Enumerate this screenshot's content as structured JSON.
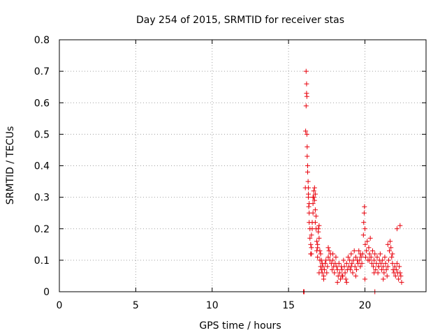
{
  "chart_data": {
    "type": "scatter",
    "title": "Day 254 of 2015, SRMTID for receiver stas",
    "xlabel": "GPS time / hours",
    "ylabel": "SRMTID / TECUs",
    "xlim": [
      0,
      24
    ],
    "ylim": [
      0,
      0.8
    ],
    "xticks": [
      0,
      5,
      10,
      15,
      20
    ],
    "xtick_labels": [
      "0",
      "5",
      "10",
      "15",
      "20"
    ],
    "yticks": [
      0,
      0.1,
      0.2,
      0.3,
      0.4,
      0.5,
      0.6,
      0.7,
      0.8
    ],
    "ytick_labels": [
      "0",
      "0.1",
      "0.2",
      "0.3",
      "0.4",
      "0.5",
      "0.6",
      "0.7",
      "0.8"
    ],
    "grid": true,
    "marker": "+",
    "color": "#e8000b",
    "series": [
      {
        "name": "stas",
        "x": [
          16.0,
          16.02,
          16.1,
          16.12,
          16.15,
          16.15,
          16.18,
          16.18,
          16.2,
          16.2,
          16.22,
          16.22,
          16.25,
          16.25,
          16.28,
          16.3,
          16.3,
          16.32,
          16.35,
          16.35,
          16.4,
          16.4,
          16.45,
          16.45,
          16.5,
          16.5,
          16.55,
          16.55,
          16.6,
          16.6,
          16.65,
          16.65,
          16.7,
          16.7,
          16.75,
          16.75,
          16.8,
          16.8,
          16.85,
          16.85,
          16.9,
          16.9,
          16.95,
          16.95,
          17.0,
          17.0,
          17.05,
          17.05,
          17.1,
          17.1,
          17.15,
          17.15,
          17.2,
          17.2,
          17.25,
          17.3,
          17.35,
          17.4,
          17.45,
          17.5,
          17.55,
          17.6,
          17.65,
          17.7,
          17.75,
          17.8,
          17.85,
          17.9,
          17.95,
          18.0,
          18.05,
          18.1,
          18.15,
          18.2,
          18.25,
          18.3,
          18.35,
          18.4,
          18.45,
          18.5,
          18.55,
          18.6,
          18.65,
          18.7,
          18.75,
          18.8,
          18.85,
          18.9,
          18.95,
          19.0,
          19.05,
          19.1,
          19.15,
          19.2,
          19.25,
          19.3,
          19.35,
          19.4,
          19.45,
          19.5,
          19.55,
          19.6,
          19.65,
          19.7,
          19.75,
          19.8,
          19.85,
          19.9,
          19.92,
          19.95,
          19.97,
          20.0,
          20.02,
          20.05,
          20.1,
          20.15,
          20.2,
          20.25,
          20.3,
          20.35,
          20.4,
          20.45,
          20.5,
          20.55,
          20.6,
          20.65,
          20.7,
          20.75,
          20.8,
          20.85,
          20.9,
          20.95,
          21.0,
          21.05,
          21.1,
          21.15,
          21.2,
          21.25,
          21.3,
          21.35,
          21.4,
          21.45,
          21.5,
          21.55,
          21.6,
          21.65,
          21.7,
          21.75,
          21.8,
          21.85,
          21.9,
          21.95,
          22.0,
          22.05,
          22.1,
          22.15,
          22.2,
          22.25,
          22.3,
          22.35,
          22.4,
          16.3,
          16.35,
          16.5,
          16.6,
          16.75,
          16.9,
          17.0,
          17.3,
          17.6,
          17.9,
          18.2,
          18.5,
          18.8,
          19.1,
          19.4,
          19.7,
          20.0,
          20.3,
          20.6,
          20.9,
          21.2,
          21.5,
          21.8,
          22.1,
          22.3,
          20.65,
          15.98
        ],
        "y": [
          0.0,
          0.0,
          0.33,
          0.51,
          0.59,
          0.7,
          0.66,
          0.63,
          0.62,
          0.5,
          0.46,
          0.43,
          0.4,
          0.38,
          0.35,
          0.33,
          0.3,
          0.27,
          0.25,
          0.22,
          0.2,
          0.17,
          0.15,
          0.12,
          0.18,
          0.14,
          0.22,
          0.2,
          0.25,
          0.28,
          0.32,
          0.3,
          0.33,
          0.29,
          0.31,
          0.26,
          0.24,
          0.2,
          0.16,
          0.13,
          0.15,
          0.11,
          0.19,
          0.2,
          0.21,
          0.17,
          0.13,
          0.1,
          0.12,
          0.08,
          0.1,
          0.07,
          0.09,
          0.06,
          0.08,
          0.05,
          0.07,
          0.09,
          0.1,
          0.06,
          0.08,
          0.11,
          0.13,
          0.1,
          0.12,
          0.09,
          0.07,
          0.1,
          0.08,
          0.06,
          0.09,
          0.11,
          0.08,
          0.07,
          0.05,
          0.09,
          0.06,
          0.04,
          0.08,
          0.07,
          0.05,
          0.1,
          0.08,
          0.06,
          0.04,
          0.09,
          0.07,
          0.11,
          0.08,
          0.1,
          0.07,
          0.12,
          0.09,
          0.06,
          0.1,
          0.13,
          0.08,
          0.11,
          0.07,
          0.1,
          0.09,
          0.13,
          0.1,
          0.08,
          0.11,
          0.09,
          0.12,
          0.18,
          0.22,
          0.25,
          0.27,
          0.2,
          0.15,
          0.11,
          0.13,
          0.16,
          0.1,
          0.14,
          0.12,
          0.17,
          0.11,
          0.09,
          0.13,
          0.08,
          0.1,
          0.12,
          0.07,
          0.09,
          0.11,
          0.06,
          0.08,
          0.1,
          0.12,
          0.09,
          0.07,
          0.1,
          0.08,
          0.06,
          0.11,
          0.09,
          0.07,
          0.05,
          0.08,
          0.1,
          0.13,
          0.16,
          0.14,
          0.11,
          0.09,
          0.07,
          0.06,
          0.08,
          0.05,
          0.07,
          0.09,
          0.06,
          0.04,
          0.08,
          0.06,
          0.05,
          0.03,
          0.31,
          0.28,
          0.12,
          0.3,
          0.22,
          0.14,
          0.06,
          0.04,
          0.14,
          0.12,
          0.03,
          0.05,
          0.03,
          0.08,
          0.05,
          0.12,
          0.04,
          0.1,
          0.06,
          0.08,
          0.04,
          0.15,
          0.12,
          0.2,
          0.21,
          0.0,
          0.0
        ]
      }
    ]
  }
}
